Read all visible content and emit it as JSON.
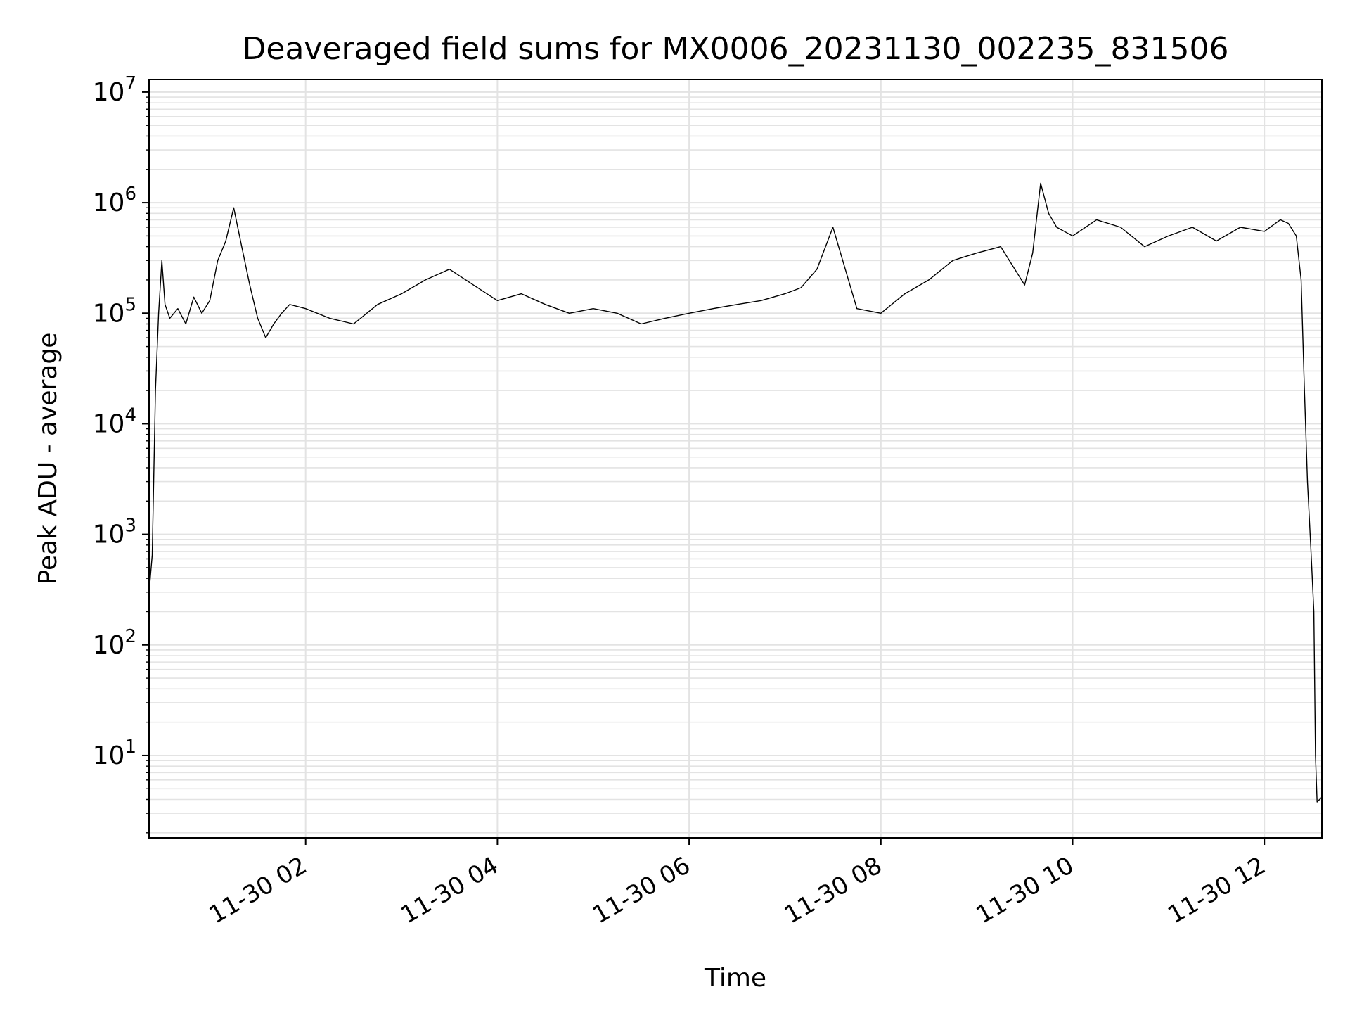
{
  "chart_data": {
    "type": "line",
    "title": "Deaveraged field sums for MX0006_20231130_002235_831506",
    "xlabel": "Time",
    "ylabel": "Peak ADU - average",
    "yscale": "log",
    "xlim": [
      "2023-11-30T00:22",
      "2023-11-30T12:36"
    ],
    "ylim": [
      1.8,
      13000000
    ],
    "grid": true,
    "color": "#000000",
    "x_ticks": [
      {
        "t": "2023-11-30T02:00",
        "label": "11-30 02"
      },
      {
        "t": "2023-11-30T04:00",
        "label": "11-30 04"
      },
      {
        "t": "2023-11-30T06:00",
        "label": "11-30 06"
      },
      {
        "t": "2023-11-30T08:00",
        "label": "11-30 08"
      },
      {
        "t": "2023-11-30T10:00",
        "label": "11-30 10"
      },
      {
        "t": "2023-11-30T12:00",
        "label": "11-30 12"
      }
    ],
    "y_ticks": [
      {
        "value": 10,
        "base": "10",
        "exp": "1"
      },
      {
        "value": 100,
        "base": "10",
        "exp": "2"
      },
      {
        "value": 1000,
        "base": "10",
        "exp": "3"
      },
      {
        "value": 10000,
        "base": "10",
        "exp": "4"
      },
      {
        "value": 100000,
        "base": "10",
        "exp": "5"
      },
      {
        "value": 1000000,
        "base": "10",
        "exp": "6"
      },
      {
        "value": 10000000,
        "base": "10",
        "exp": "7"
      }
    ],
    "series": [
      {
        "x": [
          "2023-11-30T00:22",
          "2023-11-30T00:24",
          "2023-11-30T00:26",
          "2023-11-30T00:28",
          "2023-11-30T00:30",
          "2023-11-30T00:32",
          "2023-11-30T00:35",
          "2023-11-30T00:40",
          "2023-11-30T00:45",
          "2023-11-30T00:50",
          "2023-11-30T00:55",
          "2023-11-30T01:00",
          "2023-11-30T01:05",
          "2023-11-30T01:10",
          "2023-11-30T01:15",
          "2023-11-30T01:20",
          "2023-11-30T01:25",
          "2023-11-30T01:30",
          "2023-11-30T01:35",
          "2023-11-30T01:40",
          "2023-11-30T01:45",
          "2023-11-30T01:50",
          "2023-11-30T02:00",
          "2023-11-30T02:15",
          "2023-11-30T02:30",
          "2023-11-30T02:45",
          "2023-11-30T03:00",
          "2023-11-30T03:15",
          "2023-11-30T03:30",
          "2023-11-30T03:45",
          "2023-11-30T04:00",
          "2023-11-30T04:15",
          "2023-11-30T04:30",
          "2023-11-30T04:45",
          "2023-11-30T05:00",
          "2023-11-30T05:15",
          "2023-11-30T05:30",
          "2023-11-30T05:45",
          "2023-11-30T06:00",
          "2023-11-30T06:15",
          "2023-11-30T06:30",
          "2023-11-30T06:45",
          "2023-11-30T07:00",
          "2023-11-30T07:10",
          "2023-11-30T07:20",
          "2023-11-30T07:30",
          "2023-11-30T07:45",
          "2023-11-30T08:00",
          "2023-11-30T08:15",
          "2023-11-30T08:30",
          "2023-11-30T08:45",
          "2023-11-30T09:00",
          "2023-11-30T09:15",
          "2023-11-30T09:30",
          "2023-11-30T09:35",
          "2023-11-30T09:40",
          "2023-11-30T09:45",
          "2023-11-30T09:50",
          "2023-11-30T10:00",
          "2023-11-30T10:15",
          "2023-11-30T10:30",
          "2023-11-30T10:45",
          "2023-11-30T11:00",
          "2023-11-30T11:15",
          "2023-11-30T11:30",
          "2023-11-30T11:45",
          "2023-11-30T12:00",
          "2023-11-30T12:10",
          "2023-11-30T12:15",
          "2023-11-30T12:20",
          "2023-11-30T12:23",
          "2023-11-30T12:25",
          "2023-11-30T12:27",
          "2023-11-30T12:29",
          "2023-11-30T12:31",
          "2023-11-30T12:32",
          "2023-11-30T12:33",
          "2023-11-30T12:36"
        ],
        "y": [
          300,
          650,
          20000,
          100000,
          300000,
          120000,
          90000,
          110000,
          80000,
          140000,
          100000,
          130000,
          300000,
          450000,
          900000,
          400000,
          180000,
          90000,
          60000,
          80000,
          100000,
          120000,
          110000,
          90000,
          80000,
          120000,
          150000,
          200000,
          250000,
          180000,
          130000,
          150000,
          120000,
          100000,
          110000,
          100000,
          80000,
          90000,
          100000,
          110000,
          120000,
          130000,
          150000,
          170000,
          250000,
          600000,
          110000,
          100000,
          150000,
          200000,
          300000,
          350000,
          400000,
          180000,
          350000,
          1500000,
          800000,
          600000,
          500000,
          700000,
          600000,
          400000,
          500000,
          600000,
          450000,
          600000,
          550000,
          700000,
          650000,
          500000,
          200000,
          22000,
          3000,
          800,
          200,
          10,
          3.8,
          4.2
        ]
      }
    ]
  }
}
